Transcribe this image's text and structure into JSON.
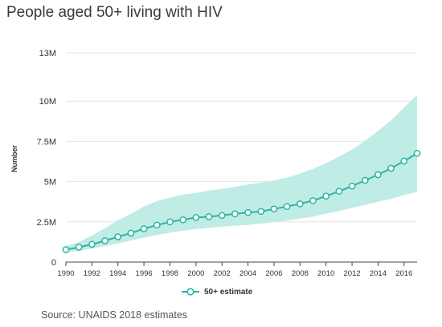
{
  "chart_data": {
    "type": "line",
    "title": "People aged 50+ living with HIV",
    "ylabel": "Number",
    "xlabel": "",
    "source": "Source: UNAIDS 2018 estimates",
    "legend": {
      "label": "50+ estimate",
      "placement": "bottom-center"
    },
    "colors": {
      "line": "#2db3a6",
      "band": "#bfece4",
      "point_fill": "#ffffff"
    },
    "grid": {
      "y": true,
      "x": false
    },
    "xlim": [
      1990,
      2017
    ],
    "ylim": [
      0,
      13000000
    ],
    "x_ticks": [
      1990,
      1992,
      1994,
      1996,
      1998,
      2000,
      2002,
      2004,
      2006,
      2008,
      2010,
      2012,
      2014,
      2016
    ],
    "y_ticks": [
      {
        "value": 0,
        "label": "0"
      },
      {
        "value": 2500000,
        "label": "2.5M"
      },
      {
        "value": 5000000,
        "label": "5M"
      },
      {
        "value": 7500000,
        "label": "7.5M"
      },
      {
        "value": 10000000,
        "label": "10M"
      },
      {
        "value": 13000000,
        "label": "13M"
      }
    ],
    "series": [
      {
        "name": "50+ estimate",
        "x": [
          1990,
          1991,
          1992,
          1993,
          1994,
          1995,
          1996,
          1997,
          1998,
          1999,
          2000,
          2001,
          2002,
          2003,
          2004,
          2005,
          2006,
          2007,
          2008,
          2009,
          2010,
          2011,
          2012,
          2013,
          2014,
          2015,
          2016,
          2017
        ],
        "values": [
          770000,
          920000,
          1100000,
          1330000,
          1570000,
          1800000,
          2070000,
          2300000,
          2500000,
          2630000,
          2770000,
          2820000,
          2900000,
          3000000,
          3080000,
          3150000,
          3300000,
          3450000,
          3620000,
          3820000,
          4100000,
          4400000,
          4720000,
          5080000,
          5430000,
          5830000,
          6280000,
          6760000
        ],
        "lower": [
          590000,
          700000,
          830000,
          990000,
          1160000,
          1340000,
          1520000,
          1680000,
          1830000,
          1950000,
          2050000,
          2120000,
          2200000,
          2260000,
          2310000,
          2390000,
          2480000,
          2580000,
          2700000,
          2820000,
          3010000,
          3170000,
          3370000,
          3550000,
          3750000,
          3930000,
          4170000,
          4360000
        ],
        "upper": [
          980000,
          1250000,
          1650000,
          2100000,
          2600000,
          3000000,
          3450000,
          3800000,
          4000000,
          4200000,
          4300000,
          4450000,
          4550000,
          4680000,
          4820000,
          4950000,
          5080000,
          5250000,
          5500000,
          5800000,
          6150000,
          6550000,
          7000000,
          7550000,
          8150000,
          8800000,
          9600000,
          10400000
        ]
      }
    ]
  }
}
